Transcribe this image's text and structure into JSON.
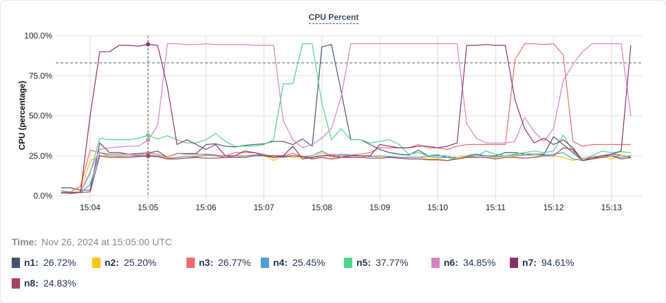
{
  "chart_data": {
    "type": "line",
    "title": "CPU Percent",
    "xlabel": "",
    "ylabel": "CPU (percentage)",
    "ylim": [
      0,
      100
    ],
    "yticks": [
      "0.0%",
      "25.0%",
      "50.0%",
      "75.0%",
      "100.0%"
    ],
    "ytick_values": [
      0,
      25,
      50,
      75,
      100
    ],
    "xticks": [
      "15:04",
      "15:05",
      "15:06",
      "15:07",
      "15:08",
      "15:09",
      "15:10",
      "15:11",
      "15:12",
      "15:13"
    ],
    "grid": true,
    "threshold": 83,
    "cursor_time": "15:05:00",
    "x": [
      "15:03:30",
      "15:03:40",
      "15:03:50",
      "15:04:00",
      "15:04:10",
      "15:04:20",
      "15:04:30",
      "15:04:40",
      "15:04:50",
      "15:05:00",
      "15:05:10",
      "15:05:20",
      "15:05:30",
      "15:05:40",
      "15:05:50",
      "15:06:00",
      "15:06:10",
      "15:06:20",
      "15:06:30",
      "15:06:40",
      "15:06:50",
      "15:07:00",
      "15:07:10",
      "15:07:20",
      "15:07:30",
      "15:07:40",
      "15:07:50",
      "15:08:00",
      "15:08:10",
      "15:08:20",
      "15:08:30",
      "15:08:40",
      "15:08:50",
      "15:09:00",
      "15:09:10",
      "15:09:20",
      "15:09:30",
      "15:09:40",
      "15:09:50",
      "15:10:00",
      "15:10:10",
      "15:10:20",
      "15:10:30",
      "15:10:40",
      "15:10:50",
      "15:11:00",
      "15:11:10",
      "15:11:20",
      "15:11:30",
      "15:11:40",
      "15:11:50",
      "15:12:00",
      "15:12:10",
      "15:12:20",
      "15:12:30",
      "15:12:40",
      "15:12:50",
      "15:13:00",
      "15:13:10",
      "15:13:20"
    ],
    "series": [
      {
        "name": "n1",
        "color": "#44546f",
        "values": [
          5,
          5,
          3.5,
          3.5,
          33,
          27,
          27,
          26,
          26.5,
          26.72,
          28,
          24,
          26.5,
          26.5,
          26.5,
          32,
          32.5,
          31,
          30.5,
          31.5,
          32,
          32.5,
          34,
          34,
          32,
          35.5,
          31,
          93,
          94.5,
          65,
          35,
          35,
          32,
          29,
          27,
          26,
          25.5,
          28.5,
          25,
          25.5,
          24,
          24,
          25,
          26,
          25,
          25,
          27,
          27,
          26,
          26,
          26,
          37,
          32,
          27,
          22,
          23,
          25,
          26,
          25.5,
          24
        ]
      },
      {
        "name": "n2",
        "color": "#ffc400",
        "values": [
          2,
          2,
          3,
          22,
          25,
          25,
          24.5,
          25,
          25,
          25.2,
          25,
          23.5,
          24,
          24.5,
          25,
          25,
          25.5,
          24,
          24,
          25,
          25.5,
          25.5,
          22,
          25,
          24,
          24,
          23.5,
          27,
          24,
          25,
          24,
          24,
          25,
          24,
          24,
          24,
          24,
          24,
          23,
          23,
          22,
          24,
          25,
          24,
          24,
          24,
          25,
          24.5,
          26,
          25,
          25,
          25,
          24,
          22,
          23.5,
          24,
          24.5,
          23,
          25.5,
          24.5
        ]
      },
      {
        "name": "n3",
        "color": "#f06b6b",
        "values": [
          3,
          2.5,
          6,
          28.5,
          27,
          26,
          26,
          26,
          25.5,
          26.77,
          26,
          24,
          26.5,
          26,
          26,
          26,
          25.5,
          25,
          27,
          27,
          27,
          26,
          24,
          25,
          26.5,
          24.5,
          24,
          25,
          26,
          25,
          25.5,
          26,
          27,
          30,
          30,
          30,
          30,
          32,
          30,
          30,
          29,
          31,
          32,
          32,
          32,
          32,
          32,
          85,
          95,
          95,
          94.5,
          95,
          88,
          34,
          31,
          32,
          32,
          32,
          32,
          32
        ]
      },
      {
        "name": "n4",
        "color": "#4a9fd5",
        "values": [
          1.5,
          2,
          2,
          7,
          27,
          25,
          25,
          25,
          25,
          25.45,
          25,
          23,
          24,
          24.5,
          24.5,
          25.5,
          25,
          24,
          25,
          25,
          25.5,
          25.5,
          25,
          24,
          25,
          24.5,
          25,
          28,
          25,
          26,
          25.5,
          25,
          24.5,
          25,
          24.5,
          24,
          24,
          24,
          24.5,
          24,
          24,
          23,
          24.5,
          25,
          25,
          24.5,
          25,
          25.5,
          25.5,
          26,
          25.5,
          26,
          27,
          23,
          22,
          24,
          25,
          25,
          24,
          25
        ]
      },
      {
        "name": "n5",
        "color": "#4bd68e",
        "values": [
          2,
          2.5,
          2,
          14,
          36,
          35,
          35,
          35,
          36,
          37.77,
          35.5,
          37.5,
          35,
          33,
          33,
          35,
          39,
          34,
          31,
          31,
          31,
          32,
          35,
          70,
          70,
          95,
          95,
          58,
          35,
          42,
          35,
          35,
          33,
          34,
          35,
          32,
          26,
          27,
          25,
          25,
          25,
          23,
          24,
          25,
          28,
          26,
          25,
          26,
          27,
          28,
          27,
          28,
          38,
          28,
          23,
          25,
          28,
          27,
          27.5,
          27
        ]
      },
      {
        "name": "n6",
        "color": "#d97fc3",
        "values": [
          2,
          2,
          2,
          15,
          29,
          30,
          30.5,
          31,
          31,
          34.85,
          44,
          95,
          95,
          94.5,
          94.5,
          95,
          94.5,
          94.5,
          94.5,
          94.5,
          94,
          94,
          94,
          47,
          35,
          30,
          32,
          36,
          42,
          62,
          95,
          95,
          95,
          95,
          95,
          95,
          95,
          95,
          95,
          95,
          95,
          95,
          45,
          36,
          33,
          33,
          33,
          34,
          49,
          40,
          34,
          42,
          72,
          82,
          90,
          95,
          95,
          95,
          95,
          50
        ]
      },
      {
        "name": "n7",
        "color": "#8b2f6e",
        "values": [
          2,
          2,
          2,
          50,
          90,
          90,
          94,
          94,
          93.5,
          94.61,
          94,
          68,
          32,
          35,
          32,
          29,
          32,
          25,
          25,
          28,
          27,
          25,
          25,
          25,
          31,
          23,
          24,
          25,
          25,
          24,
          25,
          25,
          25,
          32,
          31,
          30,
          30,
          31,
          31,
          30,
          31,
          33,
          94,
          94,
          94.5,
          94,
          94,
          60,
          42,
          33,
          36,
          32,
          35,
          30,
          22,
          24,
          25,
          26,
          28,
          94
        ]
      },
      {
        "name": "n8",
        "color": "#a8405e",
        "values": [
          2,
          1.5,
          2,
          2.5,
          25,
          24,
          24,
          24,
          24.5,
          24.83,
          24.5,
          23,
          23,
          23.5,
          24,
          23.5,
          23.5,
          24,
          24,
          24,
          25,
          25,
          24,
          24.5,
          25,
          24.5,
          23,
          24,
          23,
          24,
          24,
          24,
          23.5,
          23.5,
          24,
          23.5,
          23,
          23,
          22.5,
          22.5,
          22,
          23,
          24,
          24,
          24,
          23,
          24,
          24,
          23.5,
          24,
          25,
          25,
          30,
          29,
          22,
          23,
          24,
          25,
          23,
          24
        ]
      }
    ]
  },
  "tooltip": {
    "time_label": "Time:",
    "time_value": "Nov 26, 2024 at 15:05:00 UTC",
    "items": [
      {
        "label": "n1:",
        "value": "26.72%"
      },
      {
        "label": "n2:",
        "value": "25.20%"
      },
      {
        "label": "n3:",
        "value": "26.77%"
      },
      {
        "label": "n4:",
        "value": "25.45%"
      },
      {
        "label": "n5:",
        "value": "37.77%"
      },
      {
        "label": "n6:",
        "value": "34.85%"
      },
      {
        "label": "n7:",
        "value": "94.61%"
      },
      {
        "label": "n8:",
        "value": "24.83%"
      }
    ]
  }
}
